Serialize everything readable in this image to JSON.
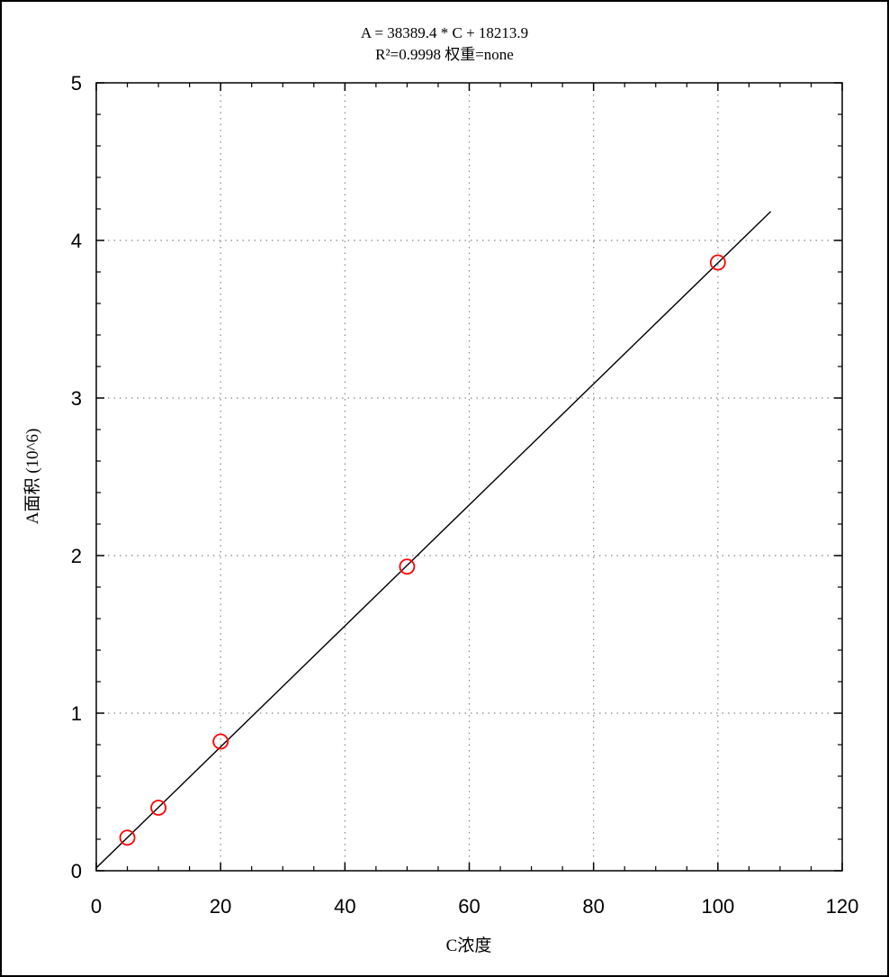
{
  "chart_data": {
    "type": "scatter",
    "title": "A =  38389.4 * C + 18213.9",
    "subtitle": "R²=0.9998 权重=none",
    "xlabel": "C浓度",
    "ylabel": "A面积 (10^6)",
    "xlim": [
      0,
      120
    ],
    "ylim": [
      0,
      5
    ],
    "xticks": [
      "0",
      "20",
      "40",
      "60",
      "80",
      "100",
      "120"
    ],
    "yticks": [
      "0",
      "1",
      "2",
      "3",
      "4",
      "5"
    ],
    "grid": true,
    "points": {
      "x": [
        5,
        10,
        20,
        50,
        100
      ],
      "y": [
        0.21,
        0.4,
        0.82,
        1.93,
        3.86
      ]
    },
    "fit": {
      "slope": 0.0383894,
      "intercept": 0.0182139,
      "x_range": [
        0,
        108.5
      ]
    },
    "colors": {
      "points": "#ff0000",
      "fit_line": "#000000",
      "axes": "#000000"
    }
  }
}
